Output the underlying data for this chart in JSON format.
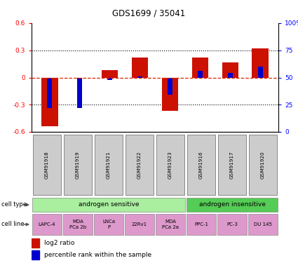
{
  "title": "GDS1699 / 35041",
  "samples": [
    "GSM91918",
    "GSM91919",
    "GSM91921",
    "GSM91922",
    "GSM91923",
    "GSM91916",
    "GSM91917",
    "GSM91920"
  ],
  "log2_ratio": [
    -0.54,
    -0.005,
    0.08,
    0.22,
    -0.37,
    0.22,
    0.17,
    0.32
  ],
  "pct_rank_display": [
    22,
    22,
    48,
    51,
    34,
    56,
    54,
    60
  ],
  "ylim": [
    -0.6,
    0.6
  ],
  "yticks_left": [
    -0.6,
    -0.3,
    0,
    0.3,
    0.6
  ],
  "ytick_labels_left": [
    "-0.6",
    "-0.3",
    "0",
    "0.3",
    "0.6"
  ],
  "ytick_labels_right": [
    "0",
    "25",
    "50",
    "75",
    "100%"
  ],
  "bar_color": "#cc1100",
  "pct_color": "#0000cc",
  "zero_line_color": "#dd2200",
  "grid_color": "#000000",
  "cell_type_groups": [
    {
      "label": "androgen sensitive",
      "start": 0,
      "end": 4,
      "color": "#aaeea0"
    },
    {
      "label": "androgen insensitive",
      "start": 5,
      "end": 7,
      "color": "#55cc55"
    }
  ],
  "cell_lines": [
    "LAPC-4",
    "MDA\nPCa 2b",
    "LNCa\nP",
    "22Rv1",
    "MDA\nPCa 2a",
    "PPC-1",
    "PC-3",
    "DU 145"
  ],
  "cell_line_color": "#dd99cc",
  "sample_box_color": "#cccccc",
  "legend_red_label": "log2 ratio",
  "legend_blue_label": "percentile rank within the sample",
  "fig_width": 4.25,
  "fig_height": 3.75,
  "dpi": 100
}
